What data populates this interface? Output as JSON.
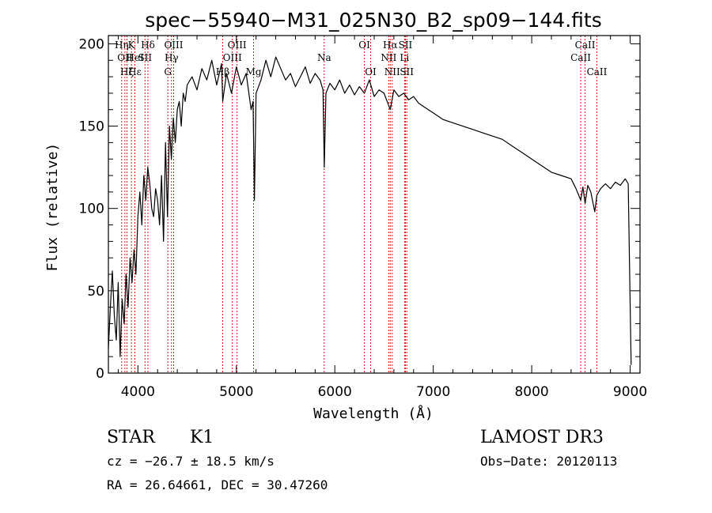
{
  "chart_data": {
    "type": "line",
    "title": "spec−55940−M31_025N30_B2_sp09−144.fits",
    "xlabel": "Wavelength (Å)",
    "ylabel": "Flux (relative)",
    "xlim": [
      3700,
      9100
    ],
    "ylim": [
      0,
      205
    ],
    "xticks": [
      4000,
      5000,
      6000,
      7000,
      8000,
      9000
    ],
    "yticks": [
      0,
      50,
      100,
      150,
      200
    ],
    "grid": false,
    "line_color": "#000000",
    "marker_color": "#cc0000",
    "series": [
      {
        "name": "spectrum",
        "x": [
          3700,
          3720,
          3740,
          3760,
          3780,
          3800,
          3820,
          3840,
          3860,
          3880,
          3900,
          3920,
          3940,
          3960,
          3980,
          4000,
          4020,
          4040,
          4060,
          4080,
          4100,
          4120,
          4140,
          4160,
          4180,
          4200,
          4220,
          4240,
          4260,
          4280,
          4300,
          4320,
          4340,
          4360,
          4380,
          4400,
          4420,
          4440,
          4460,
          4480,
          4500,
          4550,
          4600,
          4650,
          4700,
          4750,
          4800,
          4850,
          4861,
          4900,
          4950,
          5000,
          5050,
          5100,
          5150,
          5170,
          5183,
          5200,
          5250,
          5300,
          5350,
          5400,
          5450,
          5500,
          5550,
          5600,
          5650,
          5700,
          5750,
          5800,
          5850,
          5880,
          5893,
          5910,
          5950,
          6000,
          6050,
          6100,
          6150,
          6200,
          6250,
          6300,
          6350,
          6400,
          6450,
          6500,
          6563,
          6600,
          6650,
          6700,
          6750,
          6800,
          6850,
          6900,
          6950,
          7000,
          7100,
          7200,
          7300,
          7400,
          7500,
          7600,
          7700,
          7800,
          7900,
          8000,
          8100,
          8200,
          8300,
          8400,
          8450,
          8498,
          8520,
          8542,
          8570,
          8600,
          8640,
          8662,
          8700,
          8750,
          8800,
          8850,
          8900,
          8950,
          8980,
          9000,
          9010
        ],
        "y": [
          15,
          40,
          62,
          35,
          20,
          55,
          10,
          45,
          30,
          60,
          40,
          70,
          55,
          75,
          60,
          95,
          110,
          90,
          120,
          105,
          125,
          115,
          100,
          95,
          112,
          105,
          90,
          120,
          80,
          140,
          95,
          150,
          130,
          155,
          140,
          160,
          165,
          150,
          170,
          165,
          175,
          180,
          172,
          185,
          178,
          190,
          175,
          188,
          165,
          182,
          170,
          186,
          175,
          182,
          160,
          165,
          105,
          170,
          178,
          190,
          180,
          192,
          185,
          178,
          182,
          174,
          180,
          186,
          176,
          182,
          178,
          172,
          125,
          170,
          176,
          172,
          178,
          170,
          175,
          169,
          174,
          170,
          178,
          168,
          172,
          170,
          160,
          172,
          168,
          170,
          166,
          168,
          164,
          162,
          160,
          158,
          154,
          152,
          150,
          148,
          146,
          144,
          142,
          138,
          134,
          130,
          126,
          122,
          120,
          118,
          112,
          105,
          113,
          103,
          114,
          110,
          98,
          108,
          112,
          115,
          112,
          116,
          114,
          118,
          115,
          40,
          5
        ]
      }
    ],
    "line_markers": [
      {
        "wl": 3835,
        "label": "Hη",
        "row": 1
      },
      {
        "wl": 3868,
        "label": "OII",
        "row": 2
      },
      {
        "wl": 3889,
        "label": "Hζ",
        "row": 3
      },
      {
        "wl": 3934,
        "label": "K",
        "row": 1
      },
      {
        "wl": 3969,
        "label": "Hε",
        "row": 3
      },
      {
        "wl": 3970,
        "label": "HeI",
        "row": 2
      },
      {
        "wl": 4072,
        "label": "SII",
        "row": 2
      },
      {
        "wl": 4102,
        "label": "Hδ",
        "row": 1
      },
      {
        "wl": 4304,
        "label": "G",
        "row": 3
      },
      {
        "wl": 4341,
        "label": "Hγ",
        "row": 2
      },
      {
        "wl": 4363,
        "label": "OIII",
        "row": 1
      },
      {
        "wl": 4861,
        "label": "Hβ",
        "row": 3
      },
      {
        "wl": 4959,
        "label": "OIII",
        "row": 2
      },
      {
        "wl": 5007,
        "label": "OIII",
        "row": 1
      },
      {
        "wl": 5175,
        "label": "Mg",
        "row": 3
      },
      {
        "wl": 5892,
        "label": "Na",
        "row": 2
      },
      {
        "wl": 6300,
        "label": "OI",
        "row": 1
      },
      {
        "wl": 6364,
        "label": "OI",
        "row": 3
      },
      {
        "wl": 6548,
        "label": "NII",
        "row": 2
      },
      {
        "wl": 6563,
        "label": "Hα",
        "row": 1
      },
      {
        "wl": 6583,
        "label": "NII",
        "row": 3
      },
      {
        "wl": 6708,
        "label": "Li",
        "row": 2
      },
      {
        "wl": 6717,
        "label": "SII",
        "row": 1
      },
      {
        "wl": 6731,
        "label": "SII",
        "row": 3
      },
      {
        "wl": 8498,
        "label": "CaII",
        "row": 2
      },
      {
        "wl": 8542,
        "label": "CaII",
        "row": 1
      },
      {
        "wl": 8662,
        "label": "CaII",
        "row": 3
      }
    ]
  },
  "info": {
    "class_label": "STAR",
    "subclass": "K1",
    "survey": "LAMOST DR3",
    "cz_line": "cz = −26.7 ± 18.5 km/s",
    "obs_date": "Obs−Date: 20120113",
    "radec_line": "RA =  26.64661, DEC =  30.47260"
  }
}
